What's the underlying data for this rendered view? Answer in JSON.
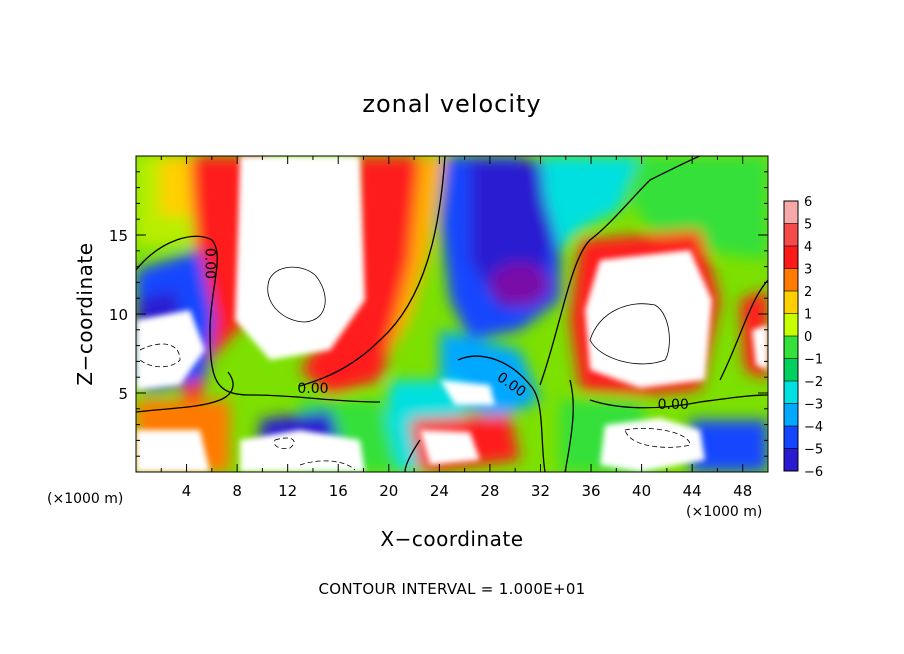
{
  "chart_data": {
    "type": "heatmap",
    "title": "zonal velocity",
    "xlabel": "X−coordinate",
    "ylabel": "Z−coordinate",
    "x_unit_label": "(×1000 m)",
    "x_unit_label_right": "(×1000 m)",
    "xlim": [
      0,
      50
    ],
    "ylim": [
      0,
      20
    ],
    "x_ticks": [
      4,
      8,
      12,
      16,
      20,
      24,
      28,
      32,
      36,
      40,
      44,
      48
    ],
    "x_tick_labels": [
      "4",
      "8",
      "12",
      "16",
      "20",
      "24",
      "28",
      "32",
      "36",
      "40",
      "44",
      "48"
    ],
    "y_ticks": [
      5,
      10,
      15
    ],
    "y_tick_labels": [
      "5",
      "10",
      "15"
    ],
    "colorbar": {
      "min": -6,
      "max": 6,
      "levels": [
        6,
        5,
        4,
        3,
        2,
        1,
        0,
        -1,
        -2,
        -3,
        -4,
        -5,
        -6
      ],
      "level_labels": [
        "6",
        "5",
        "4",
        "3",
        "2",
        "1",
        "0",
        "−1",
        "−2",
        "−3",
        "−4",
        "−5",
        "−6"
      ],
      "colors": [
        "#f7a8a8",
        "#f54a4a",
        "#ff1a1a",
        "#ff7a00",
        "#ffd000",
        "#c8ff00",
        "#36e03a",
        "#00d060",
        "#00e0e0",
        "#00a8ff",
        "#1446ff",
        "#2a1ad0",
        "#7a0aa8"
      ]
    },
    "saturated_color": "#ffffff",
    "contour_labels": [
      {
        "text": "0.00",
        "x": 5.5,
        "z": 13.2,
        "rotate": 90
      },
      {
        "text": "0.00",
        "x": 14.0,
        "z": 5.0
      },
      {
        "text": "0.00",
        "x": 29.5,
        "z": 5.3,
        "rotate": 35
      },
      {
        "text": "0.00",
        "x": 42.5,
        "z": 4.0
      }
    ],
    "footer": "CONTOUR INTERVAL = 1.000E+01"
  }
}
